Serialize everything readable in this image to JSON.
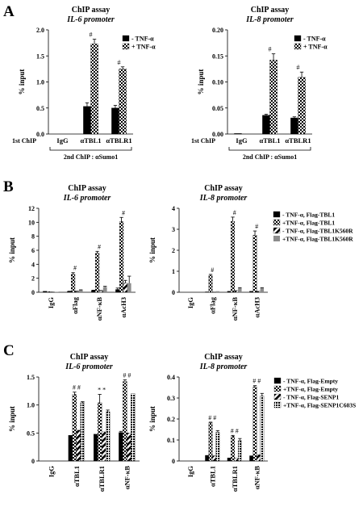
{
  "panels": [
    {
      "letter": "A"
    },
    {
      "letter": "B"
    },
    {
      "letter": "C"
    }
  ],
  "chart_data": [
    {
      "panel": "A",
      "type": "bar",
      "title": "ChIP assay",
      "subtitle": "IL-6 promoter",
      "ylabel": "% input",
      "ylim": [
        0,
        2.0
      ],
      "yticks": [
        "0.0",
        "0.5",
        "1.0",
        "1.5",
        "2.0"
      ],
      "categories": [
        "IgG",
        "αTBL1",
        "αTBLR1"
      ],
      "series": [
        {
          "name": "- TNF-α",
          "values": [
            0.0,
            0.53,
            0.5
          ],
          "errors": [
            0,
            0.07,
            0.05
          ],
          "pattern": "black"
        },
        {
          "name": "+ TNF-α",
          "values": [
            0.0,
            1.73,
            1.25
          ],
          "errors": [
            0,
            0.09,
            0.04
          ],
          "pattern": "check"
        }
      ],
      "marks": [
        "",
        "#",
        "#"
      ],
      "first_chip_label": "1st ChIP",
      "second_chip_label": "2nd ChIP : αSumo1",
      "legend": "top-right"
    },
    {
      "panel": "A",
      "type": "bar",
      "title": "ChIP assay",
      "subtitle": "IL-8 promoter",
      "ylabel": "% input",
      "ylim": [
        0,
        0.2
      ],
      "yticks": [
        "0.00",
        "0.05",
        "0.10",
        "0.15",
        "0.20"
      ],
      "categories": [
        "IgG",
        "αTBL1",
        "αTBLR1"
      ],
      "series": [
        {
          "name": "- TNF-α",
          "values": [
            0.001,
            0.036,
            0.031
          ],
          "errors": [
            0,
            0.002,
            0.002
          ],
          "pattern": "black"
        },
        {
          "name": "+ TNF-α",
          "values": [
            0.0,
            0.142,
            0.109
          ],
          "errors": [
            0,
            0.012,
            0.01
          ],
          "pattern": "check"
        }
      ],
      "marks": [
        "",
        "#",
        "#"
      ],
      "first_chip_label": "1st ChIP",
      "second_chip_label": "2nd ChIP : αSumo1",
      "legend": "top-right"
    },
    {
      "panel": "B",
      "type": "bar",
      "title": "ChIP assay",
      "subtitle": "IL-6 promoter",
      "ylabel": "% input",
      "ylim": [
        0,
        12
      ],
      "yticks": [
        "0",
        "2",
        "4",
        "6",
        "8",
        "10",
        "12"
      ],
      "categories": [
        "IgG",
        "αFlag",
        "αNF-κB",
        "αAcH3"
      ],
      "series": [
        {
          "name": "- TNF-α, Flag-TBL1",
          "values": [
            0.15,
            0.1,
            0.25,
            0.4
          ],
          "errors": [
            0,
            0.05,
            0.05,
            0.2
          ],
          "pattern": "black"
        },
        {
          "name": "+TNF-α, Flag-TBL1",
          "values": [
            0.1,
            2.6,
            5.6,
            10.1
          ],
          "errors": [
            0,
            0.2,
            0.25,
            0.6
          ],
          "pattern": "check"
        },
        {
          "name": "- TNF-α, Flag-TBL1K560R",
          "values": [
            0.05,
            0.1,
            0.2,
            1.3
          ],
          "errors": [
            0,
            0.05,
            0.05,
            0.4
          ],
          "pattern": "hatch"
        },
        {
          "name": "+TNF-α, Flag-TBL1K560R",
          "values": [
            0.05,
            0.3,
            0.75,
            1.3
          ],
          "errors": [
            0,
            0.05,
            0.1,
            1.0
          ],
          "pattern": "gray"
        }
      ],
      "marks": [
        "",
        "#",
        "#",
        "#"
      ],
      "legend": "right"
    },
    {
      "panel": "B",
      "type": "bar",
      "title": "ChIP assay",
      "subtitle": "IL-8 promoter",
      "ylabel": "% input",
      "ylim": [
        0,
        4
      ],
      "yticks": [
        "0",
        "1",
        "2",
        "3",
        "4"
      ],
      "categories": [
        "IgG",
        "αFlag",
        "αNF-κB",
        "αAcH3"
      ],
      "series": [
        {
          "name": "- TNF-α, Flag-TBL1",
          "values": [
            0.0,
            0.02,
            0.05,
            0.05
          ],
          "errors": [
            0,
            0,
            0,
            0
          ],
          "pattern": "black"
        },
        {
          "name": "+TNF-α, Flag-TBL1",
          "values": [
            0.0,
            0.8,
            3.38,
            2.72
          ],
          "errors": [
            0,
            0.05,
            0.2,
            0.2
          ],
          "pattern": "check"
        },
        {
          "name": "- TNF-α, Flag-TBL1K560R",
          "values": [
            0.0,
            0.02,
            0.08,
            0.05
          ],
          "errors": [
            0,
            0,
            0,
            0
          ],
          "pattern": "hatch"
        },
        {
          "name": "+TNF-α, Flag-TBL1K560R",
          "values": [
            0.0,
            0.05,
            0.2,
            0.2
          ],
          "errors": [
            0,
            0,
            0.02,
            0.02
          ],
          "pattern": "gray"
        }
      ],
      "marks": [
        "",
        "#",
        "#",
        "#"
      ],
      "legend": "right"
    },
    {
      "panel": "C",
      "type": "bar",
      "title": "ChIP assay",
      "subtitle": "IL-6 promoter",
      "ylabel": "% input",
      "ylim": [
        0,
        1.5
      ],
      "yticks": [
        "0",
        "0.5",
        "1.0",
        "1.5"
      ],
      "categories": [
        "IgG",
        "αTBL1",
        "αTBLR1",
        "αNF-κB"
      ],
      "series": [
        {
          "name": "- TNF-α, Flag-Empty",
          "values": [
            0.0,
            0.46,
            0.48,
            0.51
          ],
          "errors": [
            0,
            0,
            0,
            0.02
          ],
          "pattern": "black"
        },
        {
          "name": "+TNF-α, Flag-Empty",
          "values": [
            0.0,
            1.19,
            1.04,
            1.42
          ],
          "errors": [
            0,
            0.04,
            0.15,
            0.03
          ],
          "pattern": "check"
        },
        {
          "name": "- TNF-α, Flag-SENP1",
          "values": [
            0.0,
            0.55,
            0.52,
            0.5
          ],
          "errors": [
            0,
            0,
            0,
            0
          ],
          "pattern": "hatch"
        },
        {
          "name": "+TNF-α, Flag-SENP1C603S",
          "values": [
            0.0,
            1.04,
            0.88,
            1.2
          ],
          "errors": [
            0,
            0.02,
            0.03,
            0
          ],
          "pattern": "dotted"
        }
      ],
      "marks": [
        "",
        "# #",
        "* *",
        "# #"
      ],
      "legend": "right"
    },
    {
      "panel": "C",
      "type": "bar",
      "title": "ChIP assay",
      "subtitle": "IL-8 promoter",
      "ylabel": "% input",
      "ylim": [
        0,
        0.4
      ],
      "yticks": [
        "0",
        "0.1",
        "0.2",
        "0.3",
        "0.4"
      ],
      "categories": [
        "IgG",
        "αTBL1",
        "αTBLR1",
        "αNF-κB"
      ],
      "series": [
        {
          "name": "- TNF-α, Flag-Empty",
          "values": [
            0.0,
            0.027,
            0.015,
            0.025
          ],
          "errors": [
            0,
            0,
            0,
            0
          ],
          "pattern": "black"
        },
        {
          "name": "+TNF-α, Flag-Empty",
          "values": [
            0.0,
            0.182,
            0.119,
            0.354
          ],
          "errors": [
            0,
            0.003,
            0.003,
            0.005
          ],
          "pattern": "check"
        },
        {
          "name": "- TNF-α, Flag-SENP1",
          "values": [
            0.0,
            0.025,
            0.015,
            0.03
          ],
          "errors": [
            0,
            0,
            0,
            0
          ],
          "pattern": "hatch"
        },
        {
          "name": "+TNF-α, Flag-SENP1C603S",
          "values": [
            0.0,
            0.137,
            0.097,
            0.31
          ],
          "errors": [
            0,
            0.008,
            0.01,
            0.012
          ],
          "pattern": "dotted"
        }
      ],
      "marks": [
        "",
        "# #",
        "# #",
        "# #"
      ],
      "legend": "right"
    }
  ],
  "colors": {
    "black": "#000000",
    "gray": "#8c8c8c",
    "axis": "#000000"
  }
}
